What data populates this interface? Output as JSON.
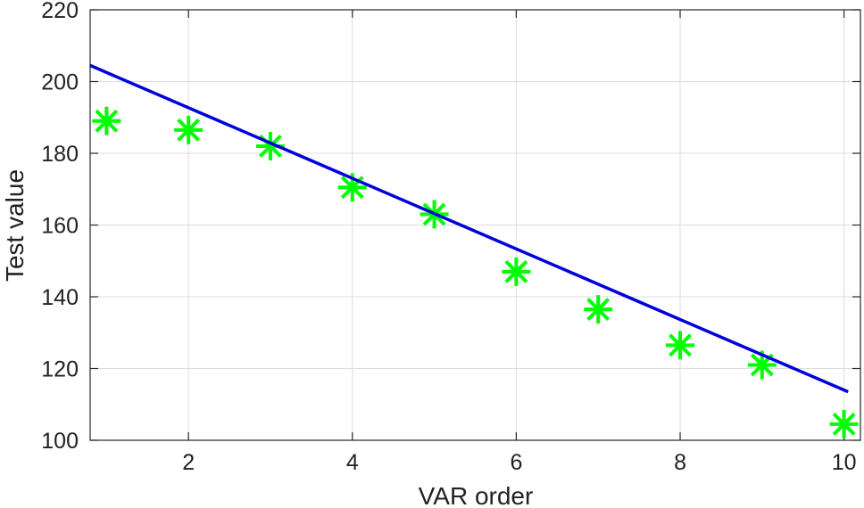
{
  "chart_data": {
    "type": "scatter",
    "title": "",
    "xlabel": "VAR order",
    "ylabel": "Test value",
    "xlim": [
      0.8,
      10.2
    ],
    "ylim": [
      100,
      220
    ],
    "xticks": [
      2,
      4,
      6,
      8,
      10
    ],
    "yticks": [
      100,
      120,
      140,
      160,
      180,
      200,
      220
    ],
    "grid": true,
    "series": [
      {
        "type": "scatter",
        "marker": "asterisk",
        "color": "#00ff00",
        "x": [
          1,
          2,
          3,
          4,
          5,
          6,
          7,
          8,
          9,
          10
        ],
        "y": [
          189,
          186.5,
          182,
          170.5,
          163,
          147,
          136.5,
          126.5,
          121,
          104.5
        ]
      },
      {
        "type": "line",
        "color": "#0000dd",
        "x": [
          0.8,
          10.05
        ],
        "y": [
          204.5,
          113.5
        ]
      }
    ]
  }
}
